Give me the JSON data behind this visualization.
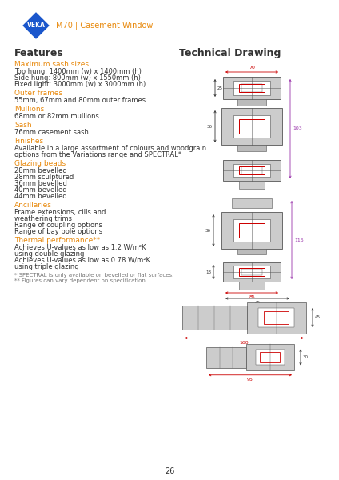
{
  "title": "M70 | Casement Window",
  "features_title": "Features",
  "tech_drawing_title": "Technical Drawing",
  "orange_color": "#E8890C",
  "blue_color": "#1A56CC",
  "dark_gray": "#333333",
  "mid_gray": "#555555",
  "light_gray": "#777777",
  "red_dim": "#CC0000",
  "purple_dim": "#9933AA",
  "profile_color": "#888888",
  "profile_edge": "#444444",
  "sections": [
    {
      "heading": "Maximum sash sizes",
      "lines": [
        "Top hung: 1400mm (w) x 1400mm (h)",
        "Side hung: 800mm (w) x 1550mm (h)",
        "Fixed light: 3000mm (w) x 3000mm (h)"
      ]
    },
    {
      "heading": "Outer frames",
      "lines": [
        "55mm, 67mm and 80mm outer frames"
      ]
    },
    {
      "heading": "Mullions",
      "lines": [
        "68mm or 82mm mullions"
      ]
    },
    {
      "heading": "Sash",
      "lines": [
        "76mm casement sash"
      ]
    },
    {
      "heading": "Finishes",
      "lines": [
        "Available in a large assortment of colours and woodgrain",
        "options from the Variations range and SPECTRAL*"
      ]
    },
    {
      "heading": "Glazing beads",
      "lines": [
        "28mm bevelled",
        "28mm sculptured",
        "36mm bevelled",
        "40mm bevelled",
        "44mm bevelled"
      ]
    },
    {
      "heading": "Ancillaries",
      "lines": [
        "Frame extensions, cills and",
        "weathering trims",
        "Range of coupling options",
        "Range of bay pole options"
      ]
    },
    {
      "heading": "Thermal performance**",
      "lines": [
        "Achieves U-values as low as 1.2 W/m²K",
        "using double glazing",
        "Achieves U-values as low as 0.78 W/m²K",
        "using triple glazing"
      ]
    }
  ],
  "footnotes": [
    "* SPECTRAL is only available on bevelled or flat surfaces.",
    "** Figures can vary dependent on specification."
  ],
  "page_number": "26",
  "bg_color": "#FFFFFF"
}
